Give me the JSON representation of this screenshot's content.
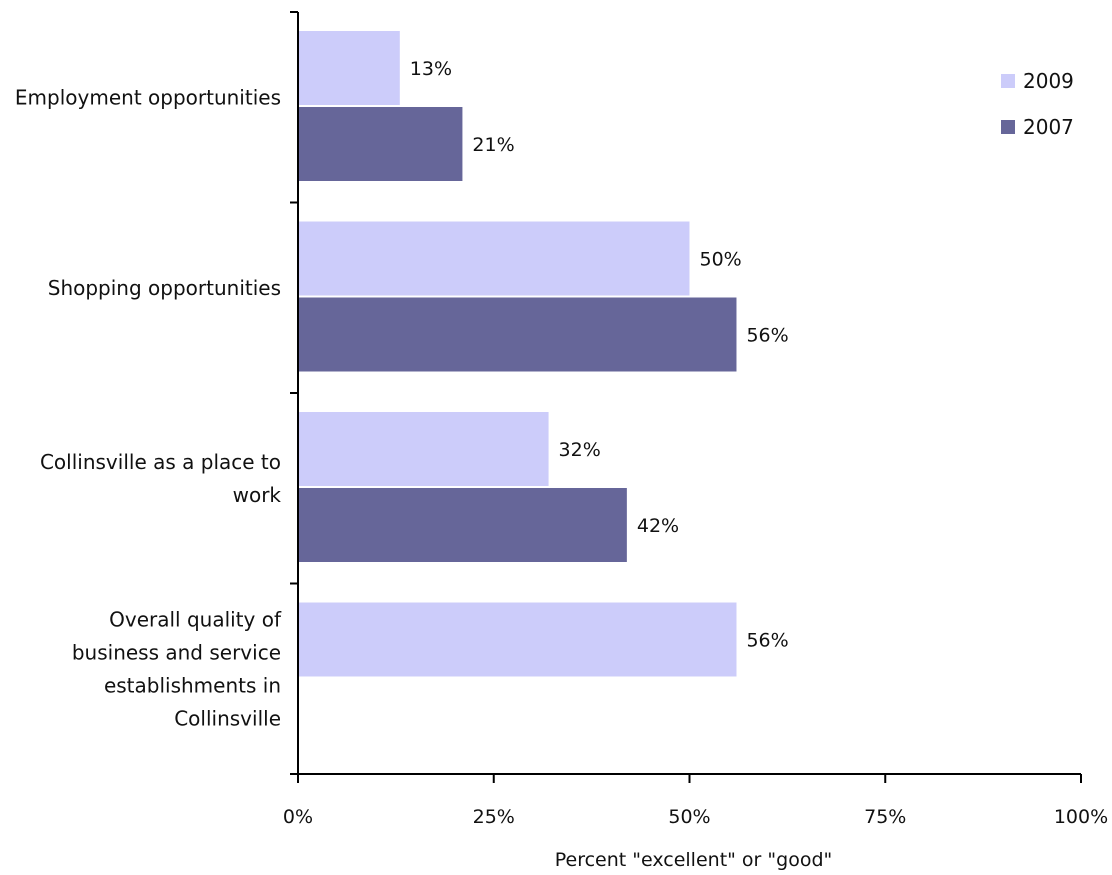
{
  "chart_data": {
    "type": "bar",
    "orientation": "horizontal",
    "categories": [
      "Employment opportunities",
      "Shopping opportunities",
      "Collinsville as a place to work",
      "Overall quality of business and service establishments in Collinsville"
    ],
    "category_lines": [
      [
        "Employment opportunities"
      ],
      [
        "Shopping opportunities"
      ],
      [
        "Collinsville as a place to",
        "work"
      ],
      [
        "Overall quality of",
        "business and service",
        "establishments in",
        "Collinsville"
      ]
    ],
    "series": [
      {
        "name": "2009",
        "values": [
          13,
          50,
          32,
          56
        ],
        "labels": [
          "13%",
          "50%",
          "32%",
          "56%"
        ],
        "color": "#ccccfa"
      },
      {
        "name": "2007",
        "values": [
          21,
          56,
          42,
          null
        ],
        "labels": [
          "21%",
          "56%",
          "42%",
          null
        ],
        "color": "#666699"
      }
    ],
    "xlim": [
      0,
      100
    ],
    "xticks": [
      "0%",
      "25%",
      "50%",
      "75%",
      "100%"
    ],
    "xlabel": "Percent \"excellent\" or \"good\"",
    "legend": {
      "position": "top-right",
      "entries": [
        "2009",
        "2007"
      ]
    },
    "grid": false
  }
}
